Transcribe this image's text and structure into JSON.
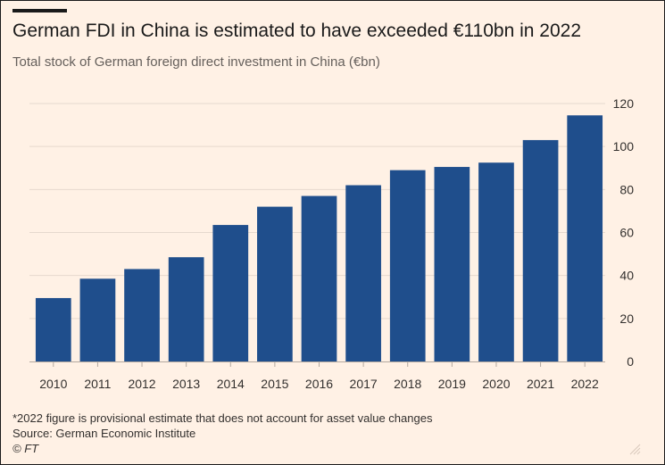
{
  "title": "German FDI in China is estimated to have exceeded €110bn in 2022",
  "subtitle": "Total stock of German foreign direct investment in China (€bn)",
  "footnote": "*2022 figure is provisional estimate that does not account for asset value changes",
  "source": "Source: German Economic Institute",
  "credit": "© FT",
  "colors": {
    "bar": "#1f4e8c",
    "grid": "#e6d9ce",
    "background": "#fff1e5",
    "text": "#33302e"
  },
  "chart_data": {
    "type": "bar",
    "title": "German FDI in China is estimated to have exceeded €110bn in 2022",
    "subtitle": "Total stock of German foreign direct investment in China (€bn)",
    "xlabel": "",
    "ylabel": "",
    "categories": [
      "2010",
      "2011",
      "2012",
      "2013",
      "2014",
      "2015",
      "2016",
      "2017",
      "2018",
      "2019",
      "2020",
      "2021",
      "2022"
    ],
    "values": [
      29.5,
      38.5,
      43,
      48.5,
      63.5,
      72,
      77,
      82,
      89,
      90.5,
      92.5,
      103,
      114.5
    ],
    "ylim": [
      0,
      120
    ],
    "yticks": [
      0,
      20,
      40,
      60,
      80,
      100,
      120
    ],
    "y_axis_side": "right",
    "grid": true
  }
}
